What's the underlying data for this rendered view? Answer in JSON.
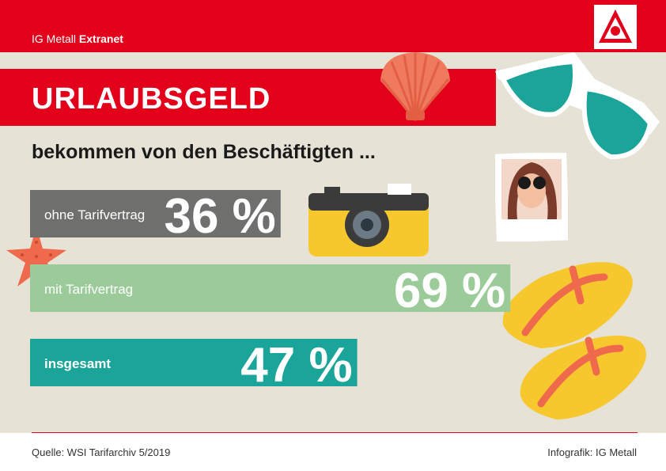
{
  "header": {
    "brand_regular": "IG Metall",
    "brand_bold": "Extranet",
    "logo_icon": "ig-metall-logo-icon"
  },
  "title": "URLAUBSGELD",
  "subtitle": "bekommen von den Beschäftigten ...",
  "chart_data": {
    "type": "bar",
    "orientation": "horizontal",
    "categories": [
      "ohne Tarifvertrag",
      "mit Tarifvertrag",
      "insgesamt"
    ],
    "values": [
      36,
      69,
      47
    ],
    "value_labels": [
      "36 %",
      "69 %",
      "47 %"
    ],
    "colors": [
      "#6f6f6e",
      "#9ccb9a",
      "#1aa49a"
    ],
    "xlim": [
      0,
      100
    ]
  },
  "footer": {
    "source": "Quelle: WSI Tarifarchiv 5/2019",
    "credit": "Infografik: IG Metall"
  },
  "decorations": [
    "shell-icon",
    "sunglasses-icon",
    "camera-icon",
    "photo-icon",
    "starfish-icon",
    "flip-flops-icon"
  ],
  "colors": {
    "red": "#e2001a",
    "background": "#e6e2d6"
  }
}
